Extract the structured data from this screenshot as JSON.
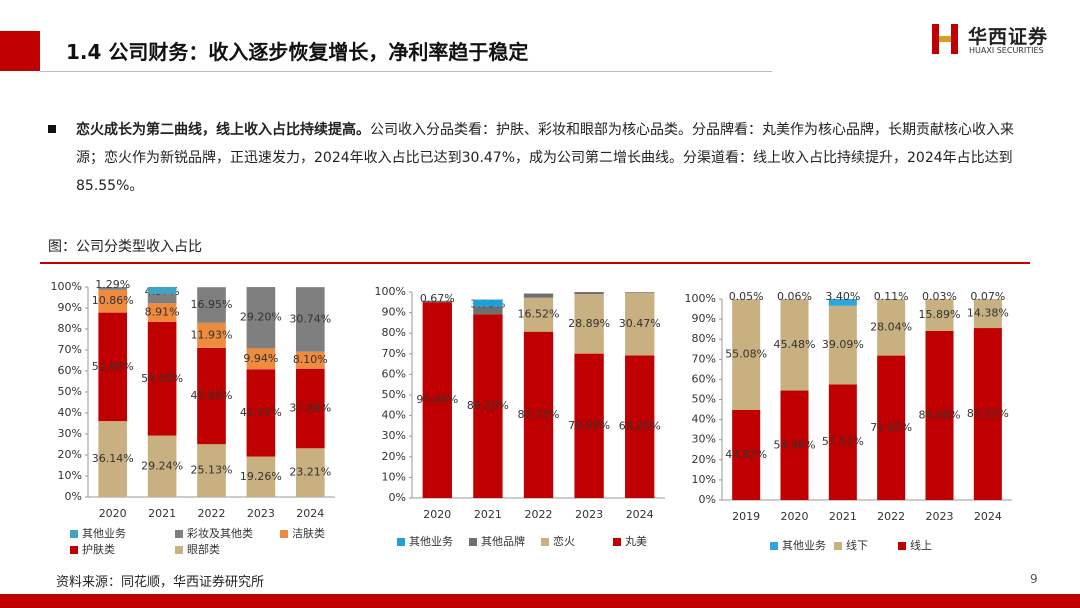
{
  "header": {
    "title": "1.4 公司财务：收入逐步恢复增长，净利率趋于稳定",
    "logo_cn": "华西证券",
    "logo_en": "HUAXI SECURITIES"
  },
  "paragraph": {
    "lead": "恋火成长为第二曲线，线上收入占比持续提高。",
    "body": "公司收入分品类看：护肤、彩妆和眼部为核心品类。分品牌看：丸美作为核心品牌，长期贡献核心收入来源；恋火作为新锐品牌，正迅速发力，2024年收入占比已达到30.47%，成为公司第二增长曲线。分渠道看：线上收入占比持续提升，2024年占比达到85.55%。"
  },
  "figure_caption": "图：公司分类型收入占比",
  "source": "资料来源：同花顺，华西证券研究所",
  "page_number": "9",
  "chart_data": [
    {
      "type": "stacked_bar",
      "categories": [
        "2020",
        "2021",
        "2022",
        "2023",
        "2024"
      ],
      "ylim": [
        0,
        100
      ],
      "yticks": [
        {
          "value": 0,
          "label": "0%"
        },
        {
          "value": 10,
          "label": "10%"
        },
        {
          "value": 20,
          "label": "20%"
        },
        {
          "value": 30,
          "label": "30%"
        },
        {
          "value": 40,
          "label": "40%"
        },
        {
          "value": 50,
          "label": "50%"
        },
        {
          "value": 60,
          "label": "60%"
        },
        {
          "value": 70,
          "label": "70%"
        },
        {
          "value": 80,
          "label": "80%"
        },
        {
          "value": 90,
          "label": "90%"
        },
        {
          "value": 100,
          "label": "100%"
        }
      ],
      "series": [
        {
          "name": "其他业务",
          "color": "#3fa4bf",
          "values": [
            null,
            3.39,
            null,
            null,
            null
          ],
          "value_labels": [
            null,
            null,
            null,
            null,
            null
          ]
        },
        {
          "name": "彩妆及其他类",
          "color": "#7f7f7f",
          "values": [
            1.29,
            4.37,
            16.95,
            29.2,
            30.74
          ],
          "value_labels": [
            "1.29%",
            "4.37%",
            "16.95%",
            "29.20%",
            "30.74%"
          ]
        },
        {
          "name": "洁肤类",
          "color": "#ef8b3f",
          "values": [
            10.86,
            8.91,
            11.93,
            9.94,
            8.1
          ],
          "value_labels": [
            "10.86%",
            "8.91%",
            "11.93%",
            "9.94%",
            "8.10%"
          ]
        },
        {
          "name": "护肤类",
          "color": "#c00000",
          "values": [
            51.66,
            54.09,
            45.88,
            41.57,
            37.88
          ],
          "value_labels": [
            "51.66%",
            "54.09%",
            "45.88%",
            "41.57%",
            "37.88%"
          ]
        },
        {
          "name": "眼部类",
          "color": "#c9b081",
          "values": [
            36.14,
            29.24,
            25.13,
            19.26,
            23.21
          ],
          "value_labels": [
            "36.14%",
            "29.24%",
            "25.13%",
            "19.26%",
            "23.21%"
          ]
        }
      ]
    },
    {
      "type": "stacked_bar",
      "categories": [
        "2020",
        "2021",
        "2022",
        "2023",
        "2024"
      ],
      "ylim": [
        0,
        100
      ],
      "yticks": [
        {
          "value": 0,
          "label": "0%"
        },
        {
          "value": 10,
          "label": "10%"
        },
        {
          "value": 20,
          "label": "20%"
        },
        {
          "value": 30,
          "label": "30%"
        },
        {
          "value": 40,
          "label": "40%"
        },
        {
          "value": 50,
          "label": "50%"
        },
        {
          "value": 60,
          "label": "60%"
        },
        {
          "value": 70,
          "label": "70%"
        },
        {
          "value": 80,
          "label": "80%"
        },
        {
          "value": 90,
          "label": "90%"
        },
        {
          "value": 100,
          "label": "100%"
        }
      ],
      "series": [
        {
          "name": "其他业务",
          "color": "#1f9fd8",
          "values": [
            null,
            3.4,
            null,
            null,
            null
          ],
          "value_labels": [
            null,
            null,
            null,
            null,
            null
          ]
        },
        {
          "name": "其他品牌",
          "color": "#6f6f6f",
          "values": [
            0.67,
            3.7,
            2.0,
            1.0,
            0.3
          ],
          "value_labels": [
            "0.67%",
            "3.70%",
            null,
            null,
            null
          ]
        },
        {
          "name": "恋火",
          "color": "#c9b081",
          "values": [
            null,
            null,
            16.52,
            28.89,
            30.47
          ],
          "value_labels": [
            null,
            null,
            "16.52%",
            "28.89%",
            "30.47%"
          ]
        },
        {
          "name": "丸美",
          "color": "#c00000",
          "values": [
            95.06,
            89.2,
            80.73,
            70.09,
            69.2
          ],
          "value_labels": [
            "95.06%",
            "89.20%",
            "80.73%",
            "70.09%",
            "69.20%"
          ]
        }
      ]
    },
    {
      "type": "stacked_bar",
      "categories": [
        "2019",
        "2020",
        "2021",
        "2022",
        "2023",
        "2024"
      ],
      "ylim": [
        0,
        100
      ],
      "yticks": [
        {
          "value": 0,
          "label": "0%"
        },
        {
          "value": 10,
          "label": "10%"
        },
        {
          "value": 20,
          "label": "20%"
        },
        {
          "value": 30,
          "label": "30%"
        },
        {
          "value": 40,
          "label": "40%"
        },
        {
          "value": 50,
          "label": "50%"
        },
        {
          "value": 60,
          "label": "60%"
        },
        {
          "value": 70,
          "label": "70%"
        },
        {
          "value": 80,
          "label": "80%"
        },
        {
          "value": 90,
          "label": "90%"
        },
        {
          "value": 100,
          "label": "100%"
        }
      ],
      "series": [
        {
          "name": "其他业务",
          "color": "#2ea6dc",
          "values": [
            0.05,
            0.06,
            3.4,
            0.11,
            0.03,
            0.07
          ],
          "value_labels": [
            "0.05%",
            "0.06%",
            "3.40%",
            "0.11%",
            "0.03%",
            "0.07%"
          ]
        },
        {
          "name": "线下",
          "color": "#c9b081",
          "values": [
            55.08,
            45.48,
            39.09,
            28.04,
            15.89,
            14.38
          ],
          "value_labels": [
            "55.08%",
            "45.48%",
            "39.09%",
            "28.04%",
            "15.89%",
            "14.38%"
          ]
        },
        {
          "name": "线上",
          "color": "#c00000",
          "values": [
            44.87,
            54.46,
            57.51,
            71.85,
            84.08,
            85.55
          ],
          "value_labels": [
            "44.87%",
            "54.46%",
            "57.51%",
            "71.85%",
            "84.08%",
            "85.55%"
          ]
        }
      ]
    }
  ]
}
